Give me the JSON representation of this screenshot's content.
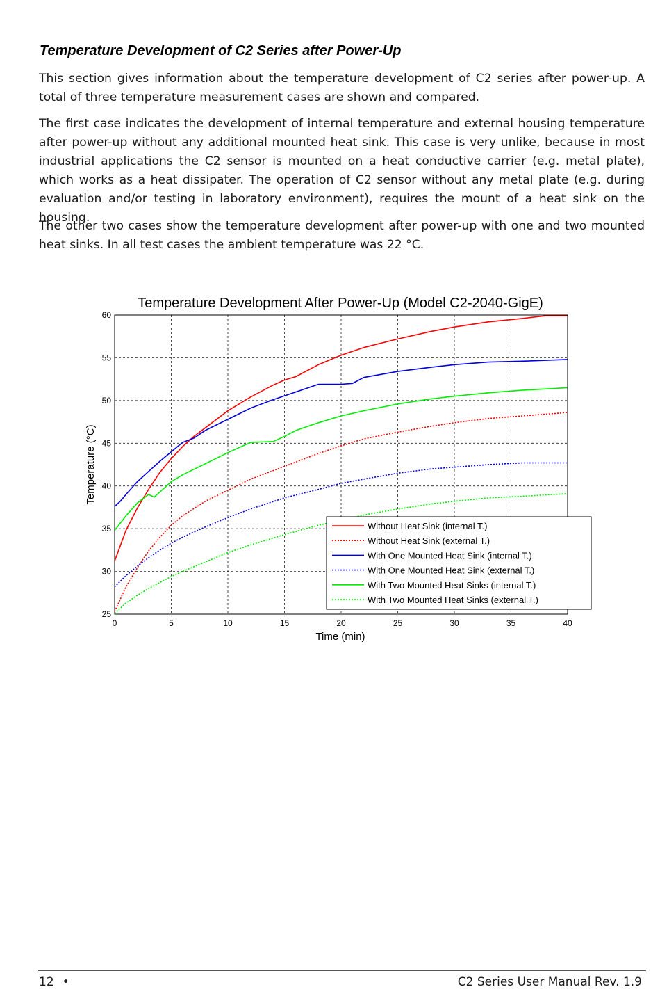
{
  "section": {
    "heading": "Temperature Development of C2 Series after Power-Up",
    "paragraphs": [
      "This section gives information about the temperature development of C2 series after power-up. A total of three temperature measurement cases are shown and compared.",
      "The first case indicates the development of internal temperature and external housing temperature after power-up without any additional mounted heat sink. This case is very unlike, because in most industrial applications the C2 sensor is mounted on a heat conductive carrier (e.g. metal plate), which works as a heat dissipater. The operation of C2 sensor without any metal plate (e.g. during evaluation and/or testing in laboratory environment), requires the mount of a heat sink on the housing.",
      "The other two cases show the temperature development after power-up with one and two mounted heat sinks. In all test cases the ambient temperature was 22 °C."
    ]
  },
  "chart_data": {
    "type": "line",
    "title": "Temperature Development After Power-Up (Model C2-2040-GigE)",
    "xlabel": "Time (min)",
    "ylabel": "Temperature (°C)",
    "xlim": [
      0,
      40
    ],
    "ylim": [
      25,
      60
    ],
    "xticks": [
      0,
      5,
      10,
      15,
      20,
      25,
      30,
      35,
      40
    ],
    "yticks": [
      25,
      30,
      35,
      40,
      45,
      50,
      55,
      60
    ],
    "grid": true,
    "legend_position": "bottom-right",
    "series": [
      {
        "name": "Without Heat Sink (internal T.)",
        "color": "#ff0000",
        "style": "solid",
        "x": [
          0,
          1,
          2,
          3,
          4,
          5,
          6,
          7,
          8,
          10,
          12,
          14,
          15,
          16,
          18,
          20,
          22,
          25,
          28,
          30,
          33,
          36,
          38,
          40
        ],
        "y": [
          31.2,
          34.8,
          37.4,
          39.6,
          41.6,
          43.2,
          44.6,
          45.8,
          46.8,
          48.8,
          50.4,
          51.8,
          52.4,
          52.8,
          54.2,
          55.3,
          56.2,
          57.2,
          58.1,
          58.6,
          59.2,
          59.6,
          59.9,
          59.9
        ]
      },
      {
        "name": "Without Heat Sink (external T.)",
        "color": "#ff0000",
        "style": "dotted",
        "x": [
          0,
          1,
          2,
          3,
          4,
          5,
          6,
          8,
          10,
          12,
          15,
          18,
          20,
          22,
          25,
          28,
          30,
          33,
          36,
          40
        ],
        "y": [
          25.3,
          28.2,
          30.4,
          32.4,
          34.0,
          35.4,
          36.5,
          38.2,
          39.5,
          40.8,
          42.3,
          43.8,
          44.7,
          45.5,
          46.3,
          47.0,
          47.4,
          47.9,
          48.2,
          48.6
        ]
      },
      {
        "name": "With One Mounted Heat Sink (internal T.)",
        "color": "#0000dd",
        "style": "solid",
        "x": [
          0,
          0.5,
          1,
          2,
          3,
          4,
          5,
          6,
          7,
          8,
          10,
          12,
          14,
          16,
          18,
          20,
          21,
          22,
          25,
          28,
          30,
          33,
          36,
          40
        ],
        "y": [
          37.6,
          38.2,
          39.0,
          40.5,
          41.7,
          42.9,
          44.0,
          45.1,
          45.6,
          46.5,
          47.8,
          49.1,
          50.1,
          51.0,
          51.9,
          51.9,
          52.0,
          52.7,
          53.4,
          53.9,
          54.2,
          54.5,
          54.6,
          54.8
        ]
      },
      {
        "name": "With One Mounted Heat Sink (external T.)",
        "color": "#0000dd",
        "style": "dotted",
        "x": [
          0,
          1,
          2,
          3,
          4,
          5,
          6,
          8,
          10,
          12,
          15,
          18,
          20,
          22,
          25,
          28,
          30,
          33,
          36,
          40
        ],
        "y": [
          28.2,
          29.5,
          30.6,
          31.6,
          32.5,
          33.3,
          34.0,
          35.2,
          36.3,
          37.3,
          38.6,
          39.6,
          40.3,
          40.8,
          41.5,
          42.0,
          42.2,
          42.5,
          42.7,
          42.7
        ]
      },
      {
        "name": "With Two Mounted Heat Sinks (internal T.)",
        "color": "#00ee00",
        "style": "solid",
        "x": [
          0,
          1,
          2,
          3,
          3.5,
          4,
          5,
          6,
          8,
          10,
          12,
          14,
          15,
          16,
          18,
          20,
          22,
          25,
          28,
          30,
          33,
          36,
          40
        ],
        "y": [
          34.8,
          36.5,
          38.0,
          39.0,
          38.7,
          39.3,
          40.5,
          41.3,
          42.6,
          43.9,
          45.1,
          45.2,
          45.8,
          46.5,
          47.4,
          48.2,
          48.8,
          49.6,
          50.2,
          50.5,
          50.9,
          51.2,
          51.5
        ]
      },
      {
        "name": "With Two Mounted Heat Sinks (external T.)",
        "color": "#00ee00",
        "style": "dotted",
        "x": [
          0,
          1,
          2,
          3,
          4,
          5,
          6,
          8,
          10,
          12,
          15,
          18,
          20,
          22,
          25,
          28,
          30,
          33,
          36,
          40
        ],
        "y": [
          25.1,
          26.3,
          27.2,
          28.0,
          28.7,
          29.4,
          30.0,
          31.1,
          32.2,
          33.1,
          34.3,
          35.4,
          36.0,
          36.6,
          37.3,
          37.9,
          38.2,
          38.6,
          38.8,
          39.1
        ]
      }
    ]
  },
  "footer": {
    "page_number": "12",
    "bullet": "•",
    "doc_title": "C2 Series User Manual Rev. 1.9"
  }
}
